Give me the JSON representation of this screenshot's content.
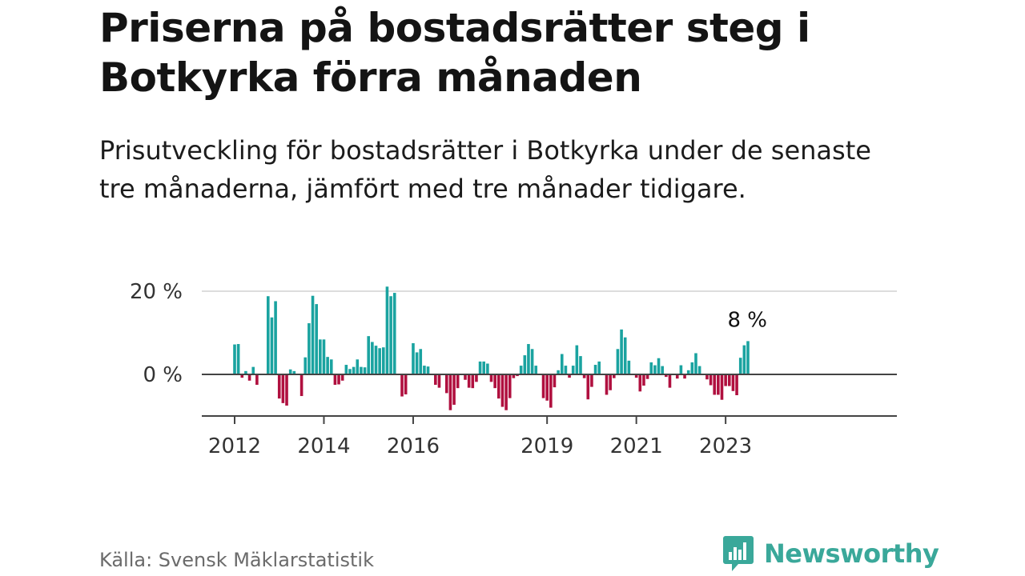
{
  "title": "Priserna på bostadsrätter steg i Botkyrka förra månaden",
  "subtitle": "Prisutveckling för bostadsrätter i Botkyrka under de senaste tre månaderna, jämfört med tre månader tidigare.",
  "source": "Källa: Svensk Mäklarstatistik",
  "brand": {
    "name": "Newsworthy",
    "icon": "newsworthy-logo-icon"
  },
  "colors": {
    "positive": "#1aa3a0",
    "negative": "#b0103f",
    "grid": "#dddddd",
    "axis": "#444444",
    "brand": "#3aa89a"
  },
  "chart_data": {
    "type": "bar",
    "title": "",
    "xlabel": "",
    "ylabel": "",
    "ylim": [
      -10,
      20
    ],
    "y_ticks": [
      {
        "value": 20,
        "label": "20 %"
      },
      {
        "value": 0,
        "label": "0 %"
      }
    ],
    "x_ticks": [
      {
        "index": 0,
        "label": "2012"
      },
      {
        "index": 24,
        "label": "2014"
      },
      {
        "index": 48,
        "label": "2016"
      },
      {
        "index": 84,
        "label": "2019"
      },
      {
        "index": 108,
        "label": "2021"
      },
      {
        "index": 132,
        "label": "2023"
      }
    ],
    "start": "2012-01",
    "values": [
      7.2,
      7.3,
      -0.8,
      0.8,
      -1.5,
      1.8,
      -2.5,
      0,
      0,
      18.8,
      13.7,
      17.6,
      -5.8,
      -6.9,
      -7.5,
      1.2,
      0.8,
      0,
      -5.2,
      4.1,
      12.3,
      18.9,
      16.9,
      8.4,
      8.4,
      4.2,
      3.6,
      -2.5,
      -2.4,
      -1.5,
      2.3,
      1.3,
      1.8,
      3.6,
      1.8,
      1.7,
      9.2,
      7.8,
      6.9,
      6.3,
      6.5,
      21.1,
      18.8,
      19.6,
      0,
      -5.3,
      -4.8,
      0,
      7.5,
      5.3,
      6.1,
      2.1,
      1.9,
      0,
      -2.5,
      -3.2,
      0,
      -4.5,
      -8.6,
      -7.3,
      -3.3,
      0,
      -1.3,
      -3.2,
      -3.3,
      -1.8,
      3.1,
      3.1,
      2.6,
      -1.8,
      -3.3,
      -5.8,
      -7.8,
      -8.6,
      -5.7,
      -0.9,
      -0.4,
      2.1,
      4.6,
      7.3,
      6.1,
      2.1,
      0,
      -5.7,
      -6.3,
      -8,
      -3.1,
      1,
      4.9,
      2.1,
      -0.8,
      2.1,
      7,
      4.4,
      -0.9,
      -6,
      -3,
      2.3,
      3.1,
      0,
      -4.9,
      -3.8,
      -0.9,
      6.1,
      10.8,
      8.9,
      3.3,
      0,
      -0.8,
      -4.1,
      -2.7,
      -1.1,
      2.9,
      2.2,
      3.9,
      2,
      -0.6,
      -3.2,
      0,
      -1,
      2.2,
      -1,
      1,
      2.9,
      5.1,
      2,
      0,
      -1.2,
      -2.6,
      -4.9,
      -4.9,
      -6.1,
      -2.8,
      -2.8,
      -4,
      -5,
      4,
      7,
      8
    ]
  },
  "annotation": {
    "label": "8 %"
  }
}
